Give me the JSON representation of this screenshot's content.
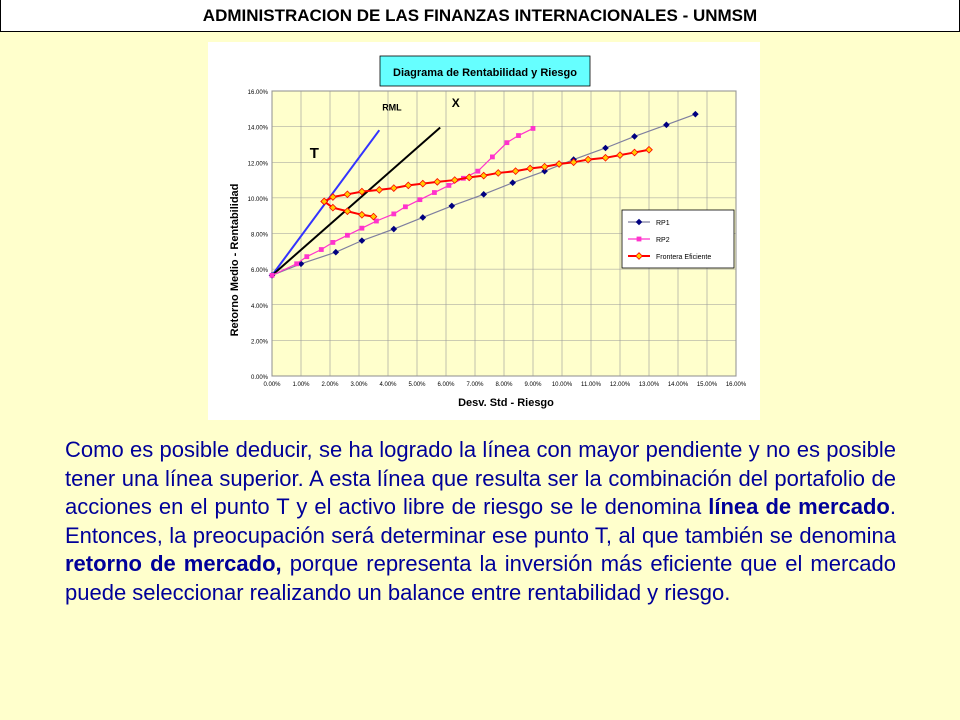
{
  "header": {
    "title": "ADMINISTRACION DE LAS FINANZAS INTERNACIONALES - UNMSM"
  },
  "chart_data": {
    "type": "line",
    "title": "Diagrama de Rentabilidad y Riesgo",
    "xlabel": "Desv. Std - Riesgo",
    "ylabel": "Retorno Medio - Rentabilidad",
    "xlim": [
      0,
      0.16
    ],
    "ylim": [
      0,
      0.16
    ],
    "x_ticks": [
      "0.00%",
      "1.00%",
      "2.00%",
      "3.00%",
      "4.00%",
      "5.00%",
      "6.00%",
      "7.00%",
      "8.00%",
      "9.00%",
      "10.00%",
      "11.00%",
      "12.00%",
      "13.00%",
      "14.00%",
      "15.00%",
      "16.00%"
    ],
    "y_ticks": [
      "0.00%",
      "2.00%",
      "4.00%",
      "6.00%",
      "8.00%",
      "10.00%",
      "12.00%",
      "14.00%",
      "16.00%"
    ],
    "grid": true,
    "legend_position": "right",
    "colors": {
      "plot_bg": "#ffffcc",
      "grid": "#999999",
      "title_bg": "#66ffff"
    },
    "annotations": [
      {
        "text": "T",
        "x": 0.013,
        "y": 0.1225
      },
      {
        "text": "RML",
        "x": 0.038,
        "y": 0.149
      },
      {
        "text": "X",
        "x": 0.062,
        "y": 0.151
      }
    ],
    "lines": [
      {
        "label": "RML",
        "color": "#3333ff",
        "points": [
          [
            0.0,
            0.0565
          ],
          [
            0.037,
            0.138
          ]
        ]
      },
      {
        "label": "X",
        "color": "#000000",
        "points": [
          [
            0.0,
            0.0565
          ],
          [
            0.058,
            0.1395
          ]
        ]
      }
    ],
    "series": [
      {
        "name": "RP1",
        "color": "#000080",
        "marker": "diamond",
        "x": [
          0.0,
          0.01,
          0.022,
          0.031,
          0.042,
          0.052,
          0.062,
          0.073,
          0.083,
          0.094,
          0.104,
          0.115,
          0.125,
          0.136,
          0.146
        ],
        "y": [
          0.0565,
          0.063,
          0.0695,
          0.076,
          0.0825,
          0.089,
          0.0955,
          0.102,
          0.1085,
          0.115,
          0.1215,
          0.128,
          0.1345,
          0.141,
          0.147
        ]
      },
      {
        "name": "RP2",
        "color": "#ff33cc",
        "marker": "square",
        "x": [
          0.0,
          0.0085,
          0.012,
          0.017,
          0.021,
          0.026,
          0.031,
          0.036,
          0.042,
          0.046,
          0.051,
          0.056,
          0.061,
          0.066,
          0.071,
          0.076,
          0.081,
          0.085,
          0.09
        ],
        "y": [
          0.0565,
          0.063,
          0.067,
          0.071,
          0.075,
          0.079,
          0.083,
          0.087,
          0.091,
          0.095,
          0.099,
          0.103,
          0.107,
          0.111,
          0.115,
          0.123,
          0.131,
          0.135,
          0.139
        ]
      },
      {
        "name": "Frontera Eficiente",
        "color": "#ff0000",
        "marker": "diamond",
        "x": [
          0.018,
          0.021,
          0.026,
          0.031,
          0.037,
          0.042,
          0.047,
          0.052,
          0.057,
          0.063,
          0.068,
          0.073,
          0.078,
          0.084,
          0.089,
          0.094,
          0.099,
          0.104,
          0.109,
          0.115,
          0.12,
          0.125,
          0.13
        ],
        "y": [
          0.098,
          0.1005,
          0.102,
          0.1035,
          0.1045,
          0.1055,
          0.107,
          0.108,
          0.109,
          0.11,
          0.1115,
          0.1125,
          0.114,
          0.115,
          0.1165,
          0.1175,
          0.119,
          0.12,
          0.1215,
          0.1225,
          0.124,
          0.1255,
          0.127
        ]
      },
      {
        "name": "Frontera Eficiente (tramo inferior)",
        "color": "#ff0000",
        "marker": "diamond",
        "show_in_legend": false,
        "x": [
          0.018,
          0.021,
          0.026,
          0.031,
          0.035
        ],
        "y": [
          0.098,
          0.0945,
          0.0925,
          0.0905,
          0.0895
        ]
      }
    ]
  },
  "paragraph": {
    "part1": "Como es posible deducir, se ha logrado la línea con mayor pendiente y no es posible tener una línea superior. A esta línea que resulta ser la combinación del portafolio de acciones en el punto T y el activo libre de riesgo se le denomina ",
    "bold1": "línea de mercado",
    "part2": ". Entonces, la preocupación será determinar ese punto T, al que también se denomina ",
    "bold2": "retorno de mercado,",
    "part3": " porque representa la inversión más eficiente que el mercado puede seleccionar realizando un balance entre rentabilidad y riesgo."
  }
}
